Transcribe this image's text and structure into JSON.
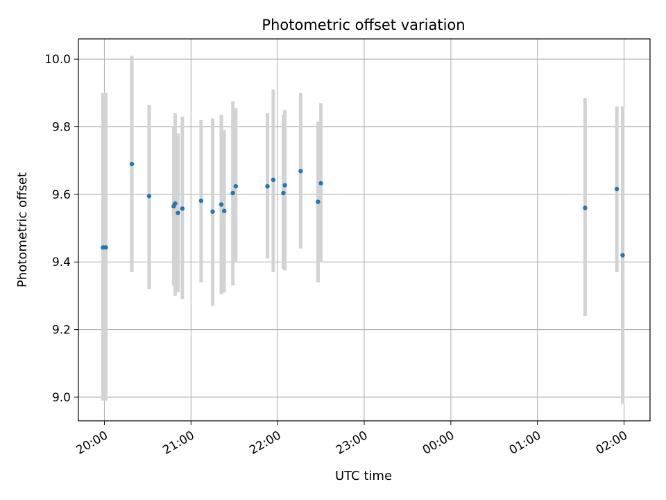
{
  "chart_data": {
    "type": "scatter",
    "title": "Photometric offset variation",
    "xlabel": "UTC time",
    "ylabel": "Photometric offset",
    "x_axis_kind": "time (hours since 20:00 UTC)",
    "xlim": [
      -0.3,
      6.3
    ],
    "ylim": [
      8.93,
      10.06
    ],
    "grid": true,
    "x_ticks": [
      {
        "value": 0,
        "label": "20:00"
      },
      {
        "value": 1,
        "label": "21:00"
      },
      {
        "value": 2,
        "label": "22:00"
      },
      {
        "value": 3,
        "label": "23:00"
      },
      {
        "value": 4,
        "label": "00:00"
      },
      {
        "value": 5,
        "label": "01:00"
      },
      {
        "value": 6,
        "label": "02:00"
      }
    ],
    "y_ticks": [
      {
        "value": 9.0,
        "label": "9.0"
      },
      {
        "value": 9.2,
        "label": "9.2"
      },
      {
        "value": 9.4,
        "label": "9.4"
      },
      {
        "value": 9.6,
        "label": "9.6"
      },
      {
        "value": 9.8,
        "label": "9.8"
      },
      {
        "value": 10.0,
        "label": "10.0"
      }
    ],
    "colors": {
      "points": "#1f77b4",
      "errorbars": "#d3d3d3",
      "grid": "#b0b0b0"
    },
    "points": [
      {
        "time": "19:59",
        "y": 9.443,
        "ymin": 8.99,
        "ymax": 9.9
      },
      {
        "time": "20:01",
        "y": 9.443,
        "ymin": 8.99,
        "ymax": 9.9
      },
      {
        "time": "20:19",
        "y": 9.69,
        "ymin": 9.37,
        "ymax": 10.01
      },
      {
        "time": "20:31",
        "y": 9.595,
        "ymin": 9.32,
        "ymax": 9.865
      },
      {
        "time": "20:48",
        "y": 9.565,
        "ymin": 9.33,
        "ymax": 9.8
      },
      {
        "time": "20:49",
        "y": 9.573,
        "ymin": 9.3,
        "ymax": 9.84
      },
      {
        "time": "20:51",
        "y": 9.545,
        "ymin": 9.31,
        "ymax": 9.78
      },
      {
        "time": "20:54",
        "y": 9.558,
        "ymin": 9.29,
        "ymax": 9.83
      },
      {
        "time": "21:07",
        "y": 9.581,
        "ymin": 9.34,
        "ymax": 9.82
      },
      {
        "time": "21:15",
        "y": 9.549,
        "ymin": 9.27,
        "ymax": 9.825
      },
      {
        "time": "21:21",
        "y": 9.57,
        "ymin": 9.305,
        "ymax": 9.835
      },
      {
        "time": "21:23",
        "y": 9.551,
        "ymin": 9.31,
        "ymax": 9.79
      },
      {
        "time": "21:29",
        "y": 9.604,
        "ymin": 9.33,
        "ymax": 9.875
      },
      {
        "time": "21:31",
        "y": 9.624,
        "ymin": 9.4,
        "ymax": 9.855
      },
      {
        "time": "21:53",
        "y": 9.624,
        "ymin": 9.41,
        "ymax": 9.84
      },
      {
        "time": "21:57",
        "y": 9.643,
        "ymin": 9.37,
        "ymax": 9.91
      },
      {
        "time": "22:04",
        "y": 9.604,
        "ymin": 9.38,
        "ymax": 9.835
      },
      {
        "time": "22:05",
        "y": 9.627,
        "ymin": 9.375,
        "ymax": 9.85
      },
      {
        "time": "22:16",
        "y": 9.669,
        "ymin": 9.44,
        "ymax": 9.9
      },
      {
        "time": "22:28",
        "y": 9.578,
        "ymin": 9.34,
        "ymax": 9.815
      },
      {
        "time": "22:30",
        "y": 9.633,
        "ymin": 9.4,
        "ymax": 9.87
      },
      {
        "time": "01:33",
        "y": 9.56,
        "ymin": 9.24,
        "ymax": 9.885
      },
      {
        "time": "01:55",
        "y": 9.616,
        "ymin": 9.37,
        "ymax": 9.86
      },
      {
        "time": "01:59",
        "y": 9.42,
        "ymin": 8.98,
        "ymax": 9.86
      }
    ]
  }
}
